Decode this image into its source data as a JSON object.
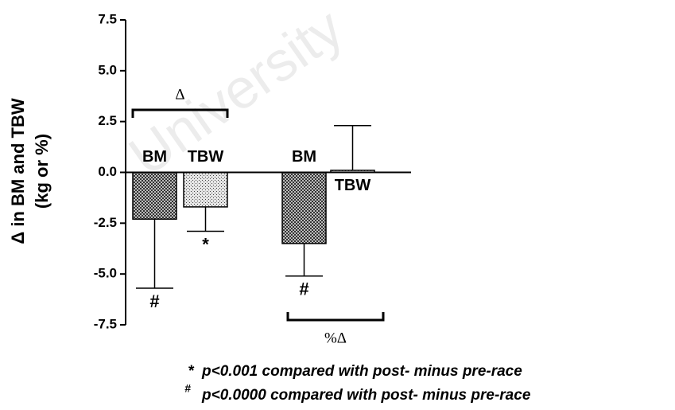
{
  "chart_data": {
    "type": "bar",
    "y_label": [
      "Δ in BM and TBW",
      "(kg or %)"
    ],
    "categories": [
      "BM",
      "TBW",
      "BM",
      "TBW"
    ],
    "group_labels": [
      "Δ",
      "%Δ"
    ],
    "values": [
      -2.3,
      -1.7,
      -3.5,
      0.1
    ],
    "errors": [
      3.4,
      1.2,
      1.6,
      2.2
    ],
    "markers": [
      "#",
      "*",
      "#",
      null
    ],
    "ylim": [
      -7.5,
      7.5
    ],
    "yticks": [
      -7.5,
      {
        "value": -5,
        "label": "-5.0"
      },
      -2.5,
      {
        "value": 0,
        "label": "0.0"
      },
      2.5,
      {
        "value": 5,
        "label": "5.0"
      },
      7.5
    ],
    "footnotes": [
      {
        "symbol": "*",
        "text": "p<0.001 compared with post- minus pre-race"
      },
      {
        "symbol": "#",
        "text": "p<0.0000 compared with post- minus pre-race"
      }
    ],
    "watermark": "University"
  }
}
